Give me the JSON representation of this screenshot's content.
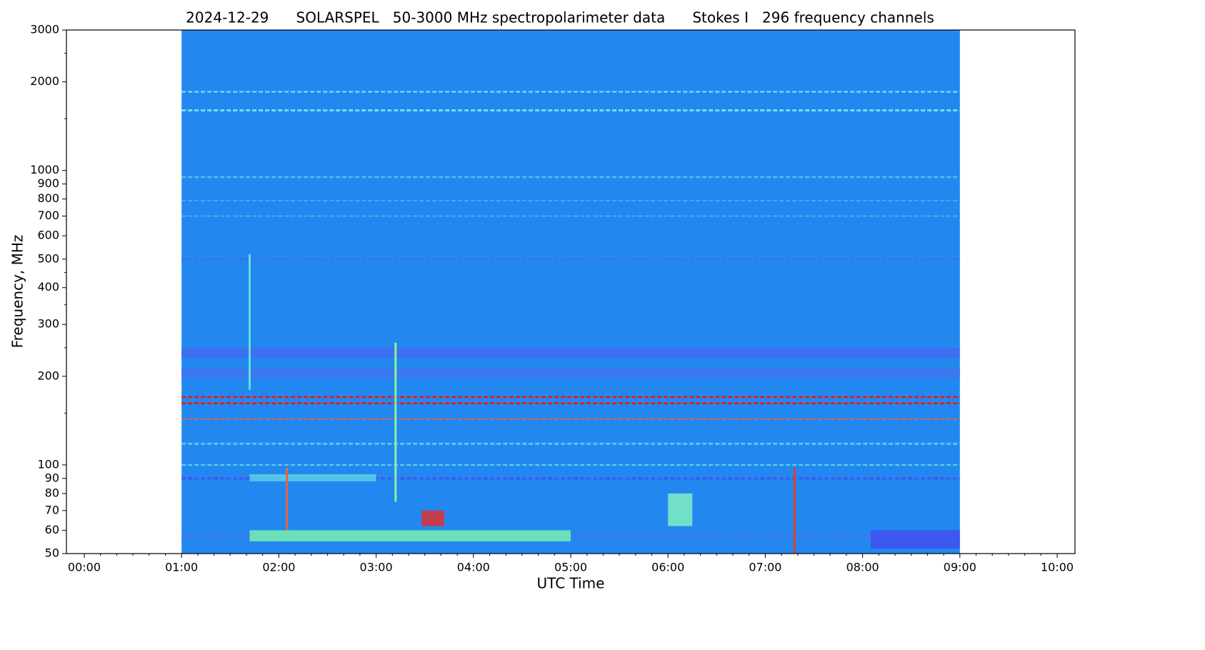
{
  "chart_data": {
    "type": "spectrogram",
    "title": "2024-12-29      SOLARSPEL   50-3000 MHz spectropolarimeter data      Stokes I   296 frequency channels",
    "xlabel": "UTC Time",
    "ylabel": "Frequency, MHz",
    "ylog": true,
    "xlim": [
      -11,
      611
    ],
    "ylim": [
      50,
      3000
    ],
    "xticks": [
      {
        "value": 0,
        "label": "00:00"
      },
      {
        "value": 60,
        "label": "01:00"
      },
      {
        "value": 120,
        "label": "02:00"
      },
      {
        "value": 180,
        "label": "03:00"
      },
      {
        "value": 240,
        "label": "04:00"
      },
      {
        "value": 300,
        "label": "05:00"
      },
      {
        "value": 360,
        "label": "06:00"
      },
      {
        "value": 420,
        "label": "07:00"
      },
      {
        "value": 480,
        "label": "08:00"
      },
      {
        "value": 540,
        "label": "09:00"
      },
      {
        "value": 600,
        "label": "10:00"
      }
    ],
    "xminorticks": [
      10,
      20,
      30,
      40,
      50,
      70,
      80,
      90,
      100,
      110,
      130,
      140,
      150,
      160,
      170,
      190,
      200,
      210,
      220,
      230,
      250,
      260,
      270,
      280,
      290,
      310,
      320,
      330,
      340,
      350,
      370,
      380,
      390,
      400,
      410,
      430,
      440,
      450,
      460,
      470,
      490,
      500,
      510,
      520,
      530,
      550,
      560,
      570,
      580,
      590
    ],
    "yticks": [
      50,
      60,
      70,
      80,
      90,
      100,
      200,
      300,
      400,
      500,
      600,
      700,
      800,
      900,
      1000,
      2000,
      3000
    ],
    "yminorticks": [
      150,
      250,
      350,
      450,
      1500,
      2500
    ],
    "data_time": [
      60,
      540
    ],
    "background": "#2288f0",
    "bands": [
      {
        "freq": 1850,
        "color": "#5ad0f0",
        "width": 3
      },
      {
        "freq": 1600,
        "color": "#6ee0e8",
        "width": 3
      },
      {
        "freq": 950,
        "color": "#4fb8f0",
        "width": 3
      },
      {
        "freq": 790,
        "color": "#4aa8f0",
        "width": 2
      },
      {
        "freq": 700,
        "color": "#4ab0f0",
        "width": 2
      },
      {
        "freq": 500,
        "color": "#3a70f0",
        "width": 3
      },
      {
        "freq": 240,
        "color": "#3e6ff0",
        "width": 14
      },
      {
        "freq": 205,
        "color": "#3878f0",
        "width": 14
      },
      {
        "freq": 170,
        "color": "#e02020",
        "width": 3
      },
      {
        "freq": 162,
        "color": "#e02020",
        "width": 3
      },
      {
        "freq": 143,
        "color": "#f06040",
        "width": 2
      },
      {
        "freq": 118,
        "color": "#56c8f0",
        "width": 3
      },
      {
        "freq": 100,
        "color": "#5ad8e8",
        "width": 2
      },
      {
        "freq": 90,
        "color": "#3e60ee",
        "width": 4
      },
      {
        "freq": 57,
        "color": "#4a70f0",
        "width": 4
      }
    ],
    "regions": [
      {
        "t0": 102,
        "t1": 300,
        "f0": 55,
        "f1": 60,
        "color": "#78f0b0"
      },
      {
        "t0": 102,
        "t1": 180,
        "f0": 88,
        "f1": 93,
        "color": "#5ad0e8"
      },
      {
        "t0": 360,
        "t1": 375,
        "f0": 62,
        "f1": 80,
        "color": "#80f0c0"
      },
      {
        "t0": 485,
        "t1": 540,
        "f0": 52,
        "f1": 60,
        "color": "#4050ee"
      },
      {
        "t0": 208,
        "t1": 222,
        "f0": 62,
        "f1": 70,
        "color": "#e03030"
      }
    ],
    "bursts": [
      {
        "time": 125,
        "f0": 60,
        "f1": 98,
        "color": "#f06040"
      },
      {
        "time": 192,
        "f0": 75,
        "f1": 260,
        "color": "#90f0a0"
      },
      {
        "time": 438,
        "f0": 50,
        "f1": 98,
        "color": "#e04030"
      },
      {
        "time": 102,
        "f0": 180,
        "f1": 520,
        "color": "#60e0d0"
      }
    ]
  }
}
